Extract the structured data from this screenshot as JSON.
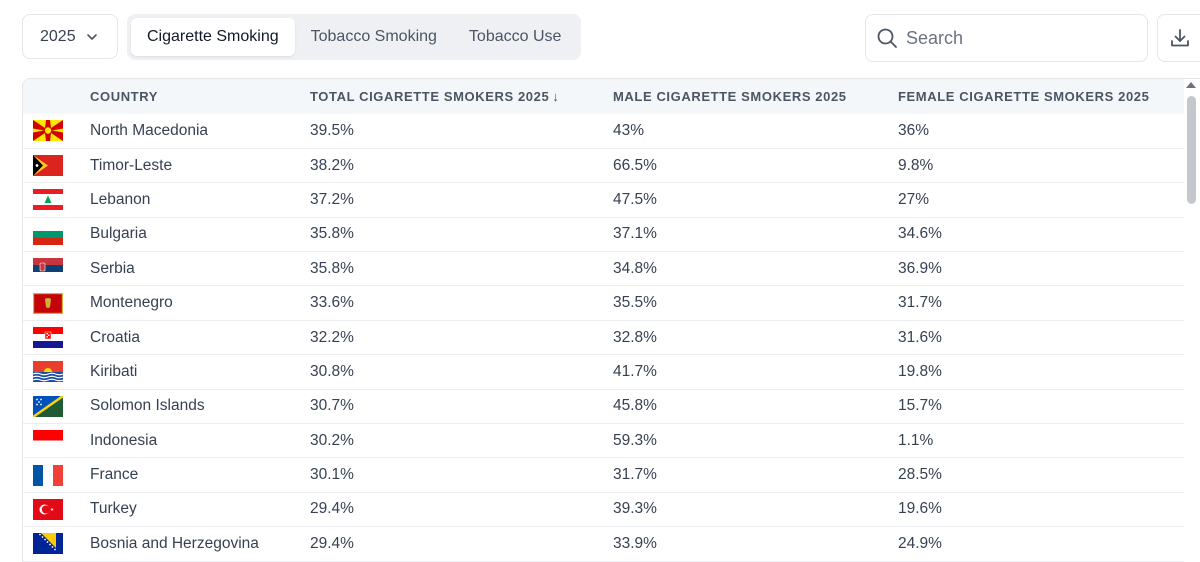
{
  "filters": {
    "year": "2025",
    "tabs": [
      {
        "label": "Cigarette Smoking",
        "active": true
      },
      {
        "label": "Tobacco Smoking",
        "active": false
      },
      {
        "label": "Tobacco Use",
        "active": false
      }
    ]
  },
  "search": {
    "placeholder": "Search"
  },
  "toolbar": {
    "download_icon": "download-icon"
  },
  "table": {
    "columns": {
      "country": "COUNTRY",
      "total": "TOTAL CIGARETTE SMOKERS 2025",
      "male": "MALE CIGARETTE SMOKERS 2025",
      "female": "FEMALE CIGARETTE SMOKERS 2025"
    },
    "sort_indicator": "↓",
    "rows": [
      {
        "flag": "north-macedonia-flag",
        "country": "North Macedonia",
        "total": "39.5%",
        "male": "43%",
        "female": "36%"
      },
      {
        "flag": "timor-leste-flag",
        "country": "Timor-Leste",
        "total": "38.2%",
        "male": "66.5%",
        "female": "9.8%"
      },
      {
        "flag": "lebanon-flag",
        "country": "Lebanon",
        "total": "37.2%",
        "male": "47.5%",
        "female": "27%"
      },
      {
        "flag": "bulgaria-flag",
        "country": "Bulgaria",
        "total": "35.8%",
        "male": "37.1%",
        "female": "34.6%"
      },
      {
        "flag": "serbia-flag",
        "country": "Serbia",
        "total": "35.8%",
        "male": "34.8%",
        "female": "36.9%"
      },
      {
        "flag": "montenegro-flag",
        "country": "Montenegro",
        "total": "33.6%",
        "male": "35.5%",
        "female": "31.7%"
      },
      {
        "flag": "croatia-flag",
        "country": "Croatia",
        "total": "32.2%",
        "male": "32.8%",
        "female": "31.6%"
      },
      {
        "flag": "kiribati-flag",
        "country": "Kiribati",
        "total": "30.8%",
        "male": "41.7%",
        "female": "19.8%"
      },
      {
        "flag": "solomon-islands-flag",
        "country": "Solomon Islands",
        "total": "30.7%",
        "male": "45.8%",
        "female": "15.7%"
      },
      {
        "flag": "indonesia-flag",
        "country": "Indonesia",
        "total": "30.2%",
        "male": "59.3%",
        "female": "1.1%"
      },
      {
        "flag": "france-flag",
        "country": "France",
        "total": "30.1%",
        "male": "31.7%",
        "female": "28.5%"
      },
      {
        "flag": "turkey-flag",
        "country": "Turkey",
        "total": "29.4%",
        "male": "39.3%",
        "female": "19.6%"
      },
      {
        "flag": "bosnia-and-herzegovina-flag",
        "country": "Bosnia and Herzegovina",
        "total": "29.4%",
        "male": "33.9%",
        "female": "24.9%"
      }
    ]
  },
  "colors": {
    "header_bg": "#f4f7fa",
    "tab_bar_bg": "#eef0f3",
    "text": "#374151",
    "scroll_thumb": "#c4c8cd"
  }
}
